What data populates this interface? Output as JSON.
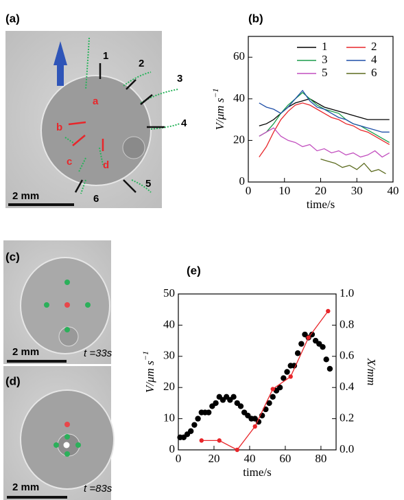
{
  "figure": {
    "panel_a": "(a)",
    "panel_c": "(c)",
    "panel_d": "(d)",
    "a_numbers": [
      "1",
      "2",
      "3",
      "4",
      "5",
      "6"
    ],
    "a_letters": [
      "a",
      "b",
      "c",
      "d"
    ],
    "scale_a": "2 mm",
    "scale_c": "2 mm",
    "scale_d": "2 mm",
    "time_c": "t =33s",
    "time_d": "t =83s"
  },
  "chart_data": [
    {
      "type": "line",
      "label": "(b)",
      "x_label": "time/s",
      "y_label": "V/μm s",
      "y_label_sup": "−1",
      "xlim": [
        0,
        40
      ],
      "xticks": [
        0,
        10,
        20,
        30,
        40
      ],
      "ylim": [
        0,
        70
      ],
      "yticks": [
        0,
        20,
        40,
        60
      ],
      "series": [
        {
          "name": "1",
          "color": "#000000",
          "style": "line",
          "x": [
            3,
            5,
            7,
            9,
            11,
            13,
            15,
            17,
            19,
            21,
            23,
            25,
            27,
            29,
            31,
            33,
            35,
            37,
            39
          ],
          "values": [
            27,
            28,
            30,
            33,
            36,
            38,
            39,
            40,
            38,
            36,
            35,
            34,
            33,
            32,
            31,
            30,
            30,
            30,
            30
          ]
        },
        {
          "name": "2",
          "color": "#e8262a",
          "style": "line",
          "x": [
            3,
            5,
            7,
            9,
            11,
            13,
            15,
            17,
            19,
            21,
            23,
            25,
            27,
            29,
            31,
            33,
            35,
            37,
            39
          ],
          "values": [
            12,
            17,
            24,
            30,
            34,
            37,
            38,
            37,
            35,
            33,
            31,
            30,
            28,
            27,
            25,
            24,
            22,
            20,
            18
          ]
        },
        {
          "name": "3",
          "color": "#1a9c4a",
          "style": "line",
          "x": [
            3,
            5,
            7,
            9,
            11,
            13,
            15,
            17,
            19,
            21,
            23,
            25,
            27,
            29,
            31,
            33,
            35,
            37,
            39
          ],
          "values": [
            22,
            24,
            28,
            33,
            37,
            40,
            43,
            40,
            37,
            35,
            34,
            33,
            30,
            28,
            27,
            25,
            23,
            21,
            19
          ]
        },
        {
          "name": "4",
          "color": "#1f4fa8",
          "style": "line",
          "x": [
            3,
            5,
            7,
            9,
            11,
            13,
            15,
            17,
            19,
            21,
            23,
            25,
            27,
            29,
            31,
            33,
            35,
            37,
            39
          ],
          "values": [
            38,
            36,
            35,
            33,
            36,
            40,
            44,
            39,
            36,
            35,
            33,
            31,
            30,
            28,
            27,
            26,
            25,
            24,
            24
          ]
        },
        {
          "name": "5",
          "color": "#c24fbf",
          "style": "line",
          "x": [
            3,
            5,
            7,
            9,
            11,
            13,
            15,
            17,
            19,
            21,
            23,
            25,
            27,
            29,
            31,
            33,
            35,
            37,
            39
          ],
          "values": [
            22,
            24,
            26,
            22,
            20,
            19,
            17,
            18,
            15,
            16,
            14,
            15,
            13,
            14,
            12,
            13,
            15,
            12,
            14
          ]
        },
        {
          "name": "6",
          "color": "#5c6b1f",
          "style": "line",
          "x": [
            20,
            22,
            24,
            26,
            28,
            30,
            32,
            34,
            36,
            38
          ],
          "values": [
            11,
            10,
            9,
            7,
            8,
            6,
            9,
            5,
            6,
            4
          ]
        }
      ],
      "legend": "upper right"
    },
    {
      "type": "line",
      "label": "(e)",
      "x_label": "time/s",
      "y_label": "V/μm s",
      "y_label_sup": "−1",
      "y2_label": "X/mm",
      "xlim": [
        0,
        88.5
      ],
      "xticks": [
        0,
        20,
        40,
        60,
        80
      ],
      "ylim": [
        0,
        50
      ],
      "yticks": [
        0,
        10,
        20,
        30,
        40,
        50
      ],
      "y2lim": [
        0,
        1
      ],
      "y2ticks": [
        {
          "value": 0,
          "label": "0.0"
        },
        0.2,
        0.4,
        0.6,
        0.8,
        {
          "value": 1,
          "label": "1.0"
        }
      ],
      "series": [
        {
          "color": "#000000",
          "style": "markers",
          "x": [
            1,
            3,
            5,
            7,
            9,
            11,
            13,
            15,
            17,
            19,
            21,
            23,
            25,
            27,
            29,
            31,
            33,
            35,
            37,
            39,
            41,
            43,
            45,
            47,
            49,
            51,
            53,
            55,
            57,
            59,
            61,
            63,
            65,
            67,
            69,
            71,
            73,
            75,
            77,
            79,
            81,
            83,
            85
          ],
          "values": [
            4,
            4,
            5,
            6,
            8,
            10,
            12,
            12,
            12,
            14,
            15,
            17,
            16,
            17,
            16,
            17,
            15,
            14,
            12,
            11,
            10,
            10,
            9,
            11,
            13,
            15,
            17,
            19,
            20,
            23,
            25,
            27,
            27,
            31,
            34,
            37,
            36,
            37,
            35,
            34,
            33,
            29,
            26
          ]
        },
        {
          "color": "#e8262a",
          "style": "markers-line",
          "axis": "y2",
          "x": [
            13,
            23,
            33,
            43,
            53,
            63,
            73,
            84
          ],
          "values": [
            0.06,
            0.06,
            0.0,
            0.15,
            0.39,
            0.47,
            0.72,
            0.89
          ]
        }
      ]
    }
  ]
}
